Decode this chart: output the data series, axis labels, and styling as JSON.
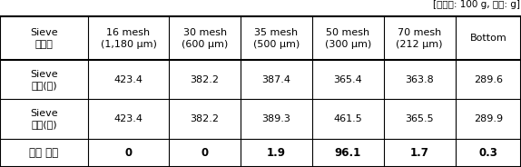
{
  "caption": "[샘플양: 100 g, 단위: g]",
  "col_headers_line1": [
    "Sieve",
    "16 mesh",
    "30 mesh",
    "35 mesh",
    "50 mesh",
    "70 mesh",
    "Bottom"
  ],
  "col_headers_line2": [
    "사이즈",
    "(1,180 μm)",
    "(600 μm)",
    "(500 μm)",
    "(300 μm)",
    "(212 μm)",
    ""
  ],
  "row1_label1": "Sieve",
  "row1_label2": "무게(전)",
  "row1_values": [
    "423.4",
    "382.2",
    "387.4",
    "365.4",
    "363.8",
    "289.6"
  ],
  "row2_label1": "Sieve",
  "row2_label2": "무게(후)",
  "row2_values": [
    "423.4",
    "382.2",
    "389.3",
    "461.5",
    "365.5",
    "289.9"
  ],
  "row3_label": "제품 무게",
  "row3_values": [
    "0",
    "0",
    "1.9",
    "96.1",
    "1.7",
    "0.3"
  ],
  "border_color": "#000000",
  "text_color": "#000000",
  "caption_fontsize": 7.5,
  "cell_fontsize": 8.0,
  "last_row_fontsize": 8.5
}
